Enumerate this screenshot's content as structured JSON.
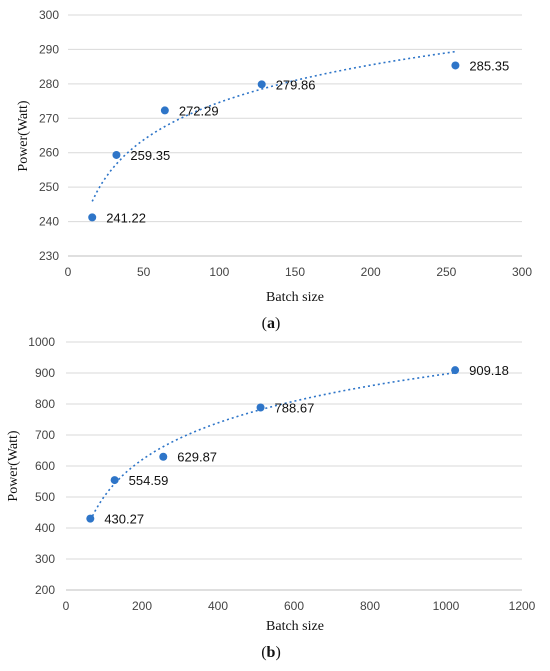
{
  "chart_data": [
    {
      "type": "scatter",
      "panel": "(a)",
      "panel_letter": "a",
      "xlabel": "Batch size",
      "ylabel": "Power(Watt)",
      "xlim": [
        0,
        300
      ],
      "ylim": [
        230,
        300
      ],
      "xticks": [
        0,
        50,
        100,
        150,
        200,
        250,
        300
      ],
      "yticks": [
        230,
        240,
        250,
        260,
        270,
        280,
        290,
        300
      ],
      "grid": "horizontal",
      "trendline": "logarithmic (dotted)",
      "x": [
        16,
        32,
        64,
        128,
        256
      ],
      "y": [
        241.22,
        259.35,
        272.29,
        279.86,
        285.35
      ],
      "data_labels": [
        "241.22",
        "259.35",
        "272.29",
        "279.86",
        "285.35"
      ]
    },
    {
      "type": "scatter",
      "panel": "(b)",
      "panel_letter": "b",
      "xlabel": "Batch size",
      "ylabel": "Power(Watt)",
      "xlim": [
        0,
        1200
      ],
      "ylim": [
        200,
        1000
      ],
      "xticks": [
        0,
        200,
        400,
        600,
        800,
        1000,
        1200
      ],
      "yticks": [
        200,
        300,
        400,
        500,
        600,
        700,
        800,
        900,
        1000
      ],
      "grid": "horizontal",
      "trendline": "logarithmic (dotted)",
      "x": [
        64,
        128,
        256,
        512,
        1024
      ],
      "y": [
        430.27,
        554.59,
        629.87,
        788.67,
        909.18
      ],
      "data_labels": [
        "430.27",
        "554.59",
        "629.87",
        "788.67",
        "909.18"
      ]
    }
  ],
  "colors": {
    "marker": "#2e75c8",
    "grid": "#d9d9d9"
  }
}
